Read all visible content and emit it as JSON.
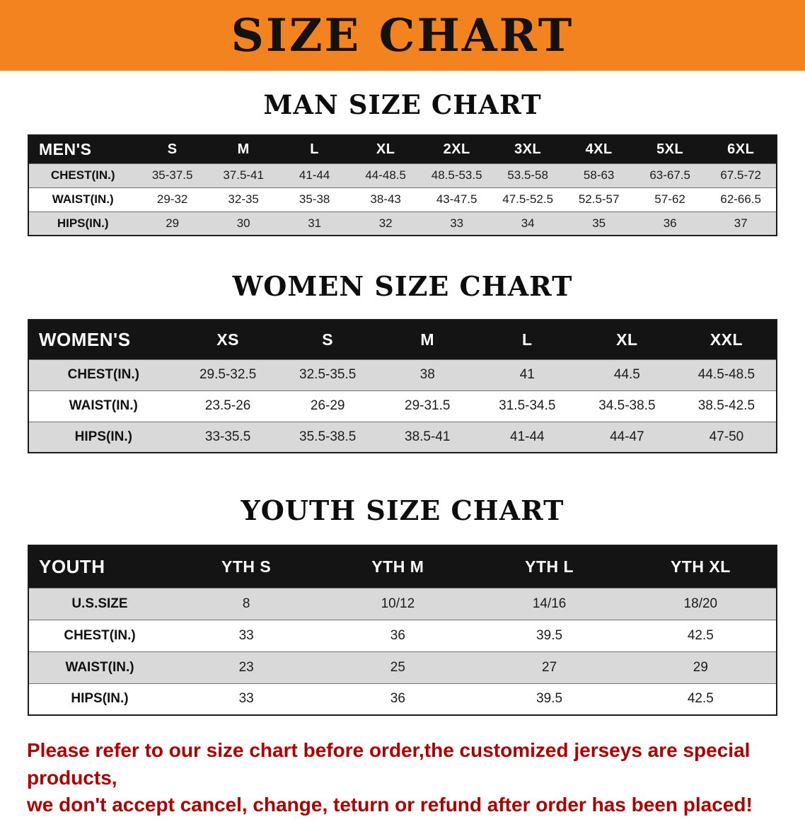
{
  "banner": {
    "title": "SIZE CHART",
    "bg_color": "#F2831E",
    "text_color": "#141210"
  },
  "sections": [
    {
      "id": "men",
      "heading": "MAN SIZE CHART",
      "columns": [
        "MEN'S",
        "S",
        "M",
        "L",
        "XL",
        "2XL",
        "3XL",
        "4XL",
        "5XL",
        "6XL"
      ],
      "rows": [
        {
          "label": "CHEST(IN.)",
          "values": [
            "35-37.5",
            "37.5-41",
            "41-44",
            "44-48.5",
            "48.5-53.5",
            "53.5-58",
            "58-63",
            "63-67.5",
            "67.5-72"
          ]
        },
        {
          "label": "WAIST(IN.)",
          "values": [
            "29-32",
            "32-35",
            "35-38",
            "38-43",
            "43-47.5",
            "47.5-52.5",
            "52.5-57",
            "57-62",
            "62-66.5"
          ]
        },
        {
          "label": "HIPS(IN.)",
          "values": [
            "29",
            "30",
            "31",
            "32",
            "33",
            "34",
            "35",
            "36",
            "37"
          ]
        }
      ]
    },
    {
      "id": "women",
      "heading": "WOMEN SIZE CHART",
      "columns": [
        "WOMEN'S",
        "XS",
        "S",
        "M",
        "L",
        "XL",
        "XXL"
      ],
      "rows": [
        {
          "label": "CHEST(IN.)",
          "values": [
            "29.5-32.5",
            "32.5-35.5",
            "38",
            "41",
            "44.5",
            "44.5-48.5"
          ]
        },
        {
          "label": "WAIST(IN.)",
          "values": [
            "23.5-26",
            "26-29",
            "29-31.5",
            "31.5-34.5",
            "34.5-38.5",
            "38.5-42.5"
          ]
        },
        {
          "label": "HIPS(IN.)",
          "values": [
            "33-35.5",
            "35.5-38.5",
            "38.5-41",
            "41-44",
            "44-47",
            "47-50"
          ]
        }
      ]
    },
    {
      "id": "youth",
      "heading": "YOUTH SIZE CHART",
      "columns": [
        "YOUTH",
        "YTH S",
        "YTH M",
        "YTH L",
        "YTH XL"
      ],
      "rows": [
        {
          "label": "U.S.SIZE",
          "values": [
            "8",
            "10/12",
            "14/16",
            "18/20"
          ]
        },
        {
          "label": "CHEST(IN.)",
          "values": [
            "33",
            "36",
            "39.5",
            "42.5"
          ]
        },
        {
          "label": "WAIST(IN.)",
          "values": [
            "23",
            "25",
            "27",
            "29"
          ]
        },
        {
          "label": "HIPS(IN.)",
          "values": [
            "33",
            "36",
            "39.5",
            "42.5"
          ]
        }
      ]
    }
  ],
  "disclaimer": {
    "color": "#AF0000",
    "lines": [
      "Please refer to our size chart before order,the customized jerseys are special products,",
      "we don't accept cancel, change, teturn or refund after order has been placed!"
    ]
  }
}
